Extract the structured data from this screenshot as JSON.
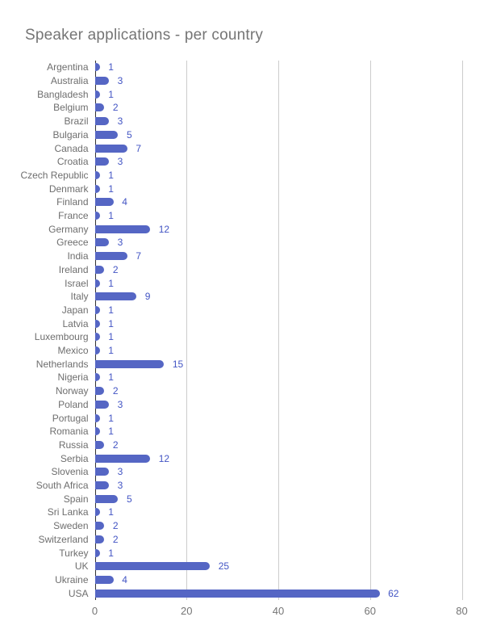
{
  "title": "Speaker applications - per country",
  "chart_data": {
    "type": "bar",
    "orientation": "horizontal",
    "title": "Speaker applications - per country",
    "categories": [
      "Argentina",
      "Australia",
      "Bangladesh",
      "Belgium",
      "Brazil",
      "Bulgaria",
      "Canada",
      "Croatia",
      "Czech Republic",
      "Denmark",
      "Finland",
      "France",
      "Germany",
      "Greece",
      "India",
      "Ireland",
      "Israel",
      "Italy",
      "Japan",
      "Latvia",
      "Luxembourg",
      "Mexico",
      "Netherlands",
      "Nigeria",
      "Norway",
      "Poland",
      "Portugal",
      "Romania",
      "Russia",
      "Serbia",
      "Slovenia",
      "South Africa",
      "Spain",
      "Sri Lanka",
      "Sweden",
      "Switzerland",
      "Turkey",
      "UK",
      "Ukraine",
      "USA"
    ],
    "values": [
      1,
      3,
      1,
      2,
      3,
      5,
      7,
      3,
      1,
      1,
      4,
      1,
      12,
      3,
      7,
      2,
      1,
      9,
      1,
      1,
      1,
      1,
      15,
      1,
      2,
      3,
      1,
      1,
      2,
      12,
      3,
      3,
      5,
      1,
      2,
      2,
      1,
      25,
      4,
      62
    ],
    "xlabel": "",
    "ylabel": "",
    "xlim": [
      0,
      80
    ],
    "x_ticks": [
      0,
      20,
      40,
      60,
      80
    ],
    "grid": true,
    "legend_position": "none",
    "bar_color": "#5566c4",
    "value_label_color": "#4355c4",
    "category_label_color": "#6e6e6e",
    "tick_label_color": "#757575",
    "title_color": "#757575",
    "gridline_color": "#cccccc",
    "baseline_color": "#333333"
  }
}
